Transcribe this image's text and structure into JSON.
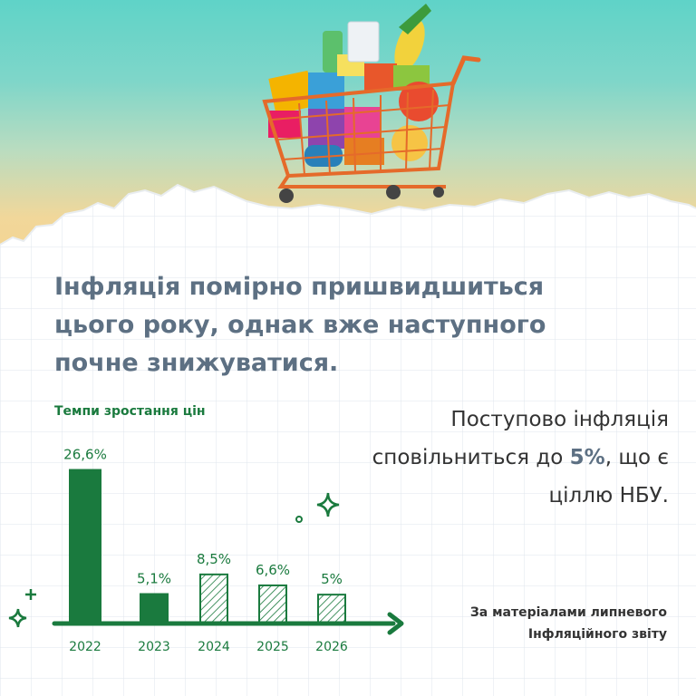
{
  "headline": "Інфляція помірно пришвидшиться цього року, однак вже наступного почне знижуватися.",
  "side_text": {
    "before": "Поступово інфляція сповільниться до ",
    "highlight": "5%",
    "after": ", що є ціллю НБУ."
  },
  "source": {
    "line1": "За матеріалами липневого",
    "line2": "Інфляційного звіту"
  },
  "colors": {
    "primary_green": "#1a7a3e",
    "headline_slate": "#5d7083",
    "paper_grid": "#dfe6ec"
  },
  "chart_data": {
    "type": "bar",
    "title": "Темпи зростання цін",
    "categories": [
      "2022",
      "2023",
      "2024",
      "2025",
      "2026"
    ],
    "values": [
      26.6,
      5.1,
      8.5,
      6.6,
      5
    ],
    "value_labels": [
      "26,6%",
      "5,1%",
      "8,5%",
      "6,6%",
      "5%"
    ],
    "bar_styles": [
      "solid",
      "solid",
      "hatched",
      "hatched",
      "hatched"
    ],
    "xlabel": "",
    "ylabel": "",
    "ylim": [
      0,
      27
    ],
    "grid": false,
    "legend": "none"
  }
}
